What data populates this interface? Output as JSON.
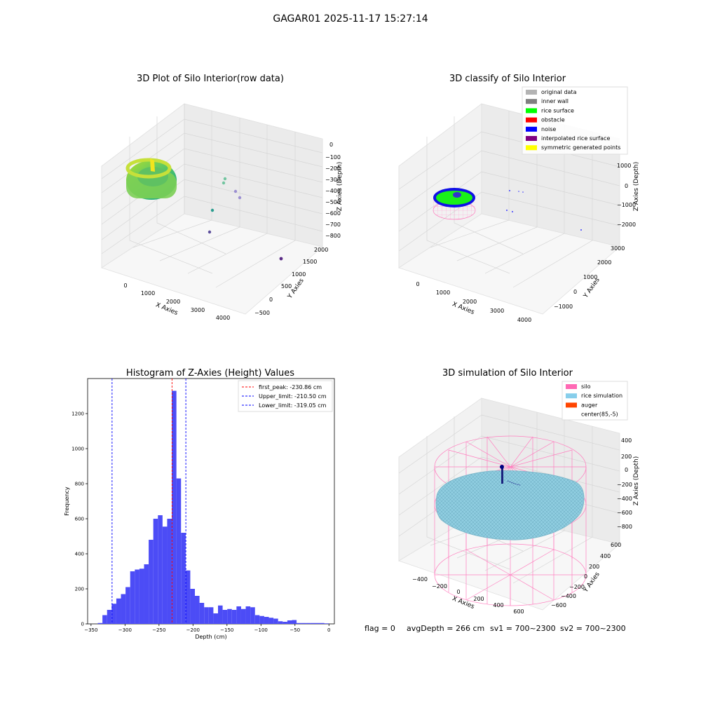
{
  "suptitle": "GAGAR01 2025-11-17 15:27:14",
  "footer": {
    "flag": "flag = 0",
    "avg_depth": "avgDepth = 266 cm",
    "sv1": "sv1 = 700~2300",
    "sv2": "sv2 = 700~2300"
  },
  "chart_data": [
    {
      "type": "scatter",
      "title": "3D Plot of Silo Interior(row data)",
      "xlabel": "X Axies",
      "ylabel": "Y Axies",
      "zlabel": "Z Axies (Depth)",
      "x_ticks": [
        "0",
        "1000",
        "2000",
        "3000",
        "4000"
      ],
      "y_ticks": [
        "−500",
        "0",
        "500",
        "1000",
        "1500",
        "2000"
      ],
      "z_ticks": [
        "0",
        "−100",
        "−200",
        "−300",
        "−400",
        "−500",
        "−600",
        "−700",
        "−800"
      ],
      "outlier_points": [
        {
          "x": 2300,
          "y": 1000,
          "z": -290,
          "color": "#72c5a0"
        },
        {
          "x": 2300,
          "y": 1000,
          "z": -330,
          "color": "#72c5a0"
        },
        {
          "x": 2600,
          "y": 1100,
          "z": -390,
          "color": "#9b8fd1"
        },
        {
          "x": 2700,
          "y": 1200,
          "z": -430,
          "color": "#9b8fd1"
        },
        {
          "x": 2200,
          "y": 600,
          "z": -560,
          "color": "#2a9d8f"
        },
        {
          "x": 2200,
          "y": 500,
          "z": -720,
          "color": "#5d4f9c"
        },
        {
          "x": 4200,
          "y": 1900,
          "z": -780,
          "color": "#5a2a86"
        }
      ]
    },
    {
      "type": "scatter",
      "title": "3D classify of Silo Interior",
      "xlabel": "X Axies",
      "ylabel": "Y Axies",
      "zlabel": "Z Axies (Depth)",
      "x_ticks": [
        "0",
        "1000",
        "2000",
        "3000",
        "4000"
      ],
      "y_ticks": [
        "−1000",
        "0",
        "1000",
        "2000",
        "3000"
      ],
      "z_ticks": [
        "1000",
        "0",
        "−1000",
        "−2000"
      ],
      "legend": [
        {
          "label": "original data",
          "color": "#b3b3b3"
        },
        {
          "label": "inner wall",
          "color": "#808080"
        },
        {
          "label": "rice surface",
          "color": "#00ff00"
        },
        {
          "label": "obstacle",
          "color": "#ff0000"
        },
        {
          "label": "noise",
          "color": "#0000ff"
        },
        {
          "label": "interpolated rice surface",
          "color": "#800080"
        },
        {
          "label": "symmetric generated points",
          "color": "#ffff00"
        }
      ]
    },
    {
      "type": "bar",
      "title": "Histogram of Z-Axies (Height) Values",
      "xlabel": "Depth (cm)",
      "ylabel": "Frequency",
      "xlim": [
        -355,
        8
      ],
      "ylim": [
        0,
        1400
      ],
      "x_ticks": [
        -350,
        -300,
        -250,
        -200,
        -150,
        -100,
        -50,
        0
      ],
      "x_tick_labels": [
        "−350",
        "−300",
        "−250",
        "−200",
        "−150",
        "−100",
        "−50",
        "0"
      ],
      "y_ticks": [
        0,
        200,
        400,
        600,
        800,
        1000,
        1200
      ],
      "y_tick_labels": [
        "0",
        "200",
        "400",
        "600",
        "800",
        "1000",
        "1200"
      ],
      "bin_start": -340,
      "bin_width": 6.8,
      "values": [
        5,
        50,
        80,
        115,
        145,
        170,
        210,
        300,
        310,
        315,
        340,
        480,
        600,
        620,
        555,
        600,
        1330,
        830,
        520,
        305,
        200,
        160,
        120,
        95,
        95,
        60,
        105,
        80,
        85,
        80,
        100,
        85,
        100,
        95,
        50,
        45,
        40,
        35,
        30,
        15,
        12,
        20,
        22,
        5,
        5,
        5,
        5,
        5,
        5,
        3
      ],
      "bar_color": "#4c4cf6",
      "lines": [
        {
          "label": "first_peak: -230.86 cm",
          "x": -230.86,
          "color": "#ff0000"
        },
        {
          "label": "Upper_limit: -210.50 cm",
          "x": -210.5,
          "color": "#0000ff"
        },
        {
          "label": "Lower_limit: -319.05 cm",
          "x": -319.05,
          "color": "#0000ff"
        }
      ]
    },
    {
      "type": "scatter",
      "title": "3D simulation of Silo Interior",
      "xlabel": "X Axies",
      "ylabel": "Y Axies",
      "zlabel": "Z Axies (Depth)",
      "x_ticks": [
        "−400",
        "−200",
        "0",
        "200",
        "400",
        "600"
      ],
      "y_ticks": [
        "−600",
        "−400",
        "−200",
        "0",
        "200",
        "400",
        "600"
      ],
      "z_ticks": [
        "400",
        "200",
        "0",
        "−200",
        "−400",
        "−600",
        "−800"
      ],
      "legend": [
        {
          "label": "silo",
          "color": "#ff69b4"
        },
        {
          "label": "rice simulation",
          "color": "#87ceeb"
        },
        {
          "label": "auger",
          "color": "#ff4500"
        },
        {
          "label": "center(85,-5)",
          "color": "#ffffff"
        }
      ]
    }
  ]
}
